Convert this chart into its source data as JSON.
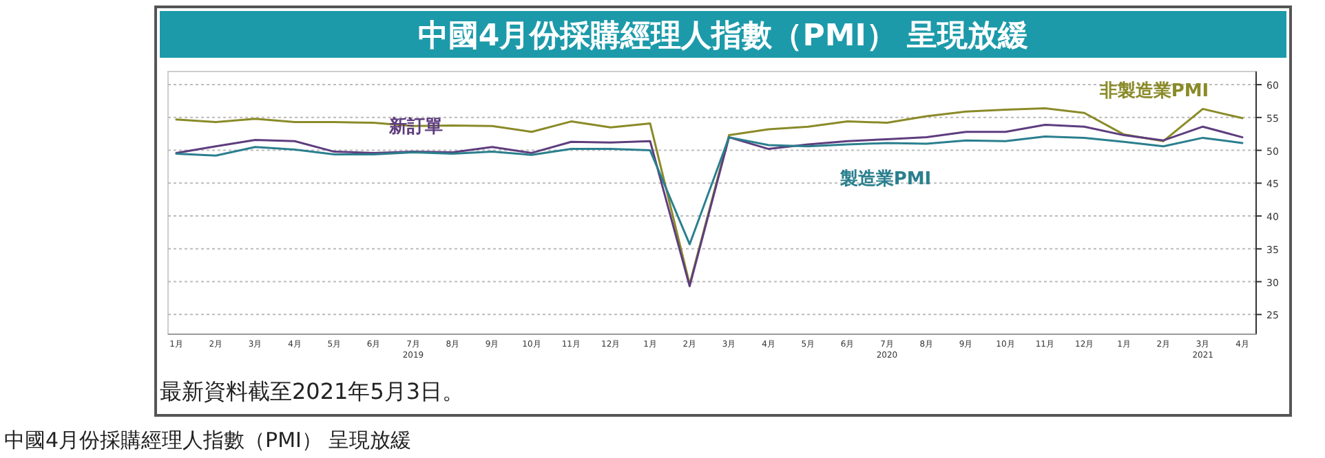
{
  "chart_data": {
    "type": "line",
    "title": "中國4月份採購經理人指數（PMI） 呈現放緩",
    "categories": [
      "1月",
      "2月",
      "3月",
      "4月",
      "5月",
      "6月",
      "7月\n2019",
      "8月",
      "9月",
      "10月",
      "11月",
      "12月",
      "1月",
      "2月",
      "3月",
      "4月",
      "5月",
      "6月",
      "7月\n2020",
      "8月",
      "9月",
      "10月",
      "11月",
      "12月",
      "1月",
      "2月",
      "3月\n2021",
      "4月"
    ],
    "series": [
      {
        "name": "非製造業PMI",
        "color": "#8a8a28",
        "values": [
          54.7,
          54.3,
          54.8,
          54.3,
          54.3,
          54.2,
          53.7,
          53.8,
          53.7,
          52.8,
          54.4,
          53.5,
          54.1,
          29.6,
          52.3,
          53.2,
          53.6,
          54.4,
          54.2,
          55.2,
          55.9,
          56.2,
          56.4,
          55.7,
          52.4,
          51.4,
          56.3,
          54.9
        ]
      },
      {
        "name": "新訂單",
        "color": "#5e3d7e",
        "values": [
          49.6,
          50.6,
          51.6,
          51.4,
          49.8,
          49.6,
          49.8,
          49.7,
          50.5,
          49.6,
          51.3,
          51.2,
          51.4,
          29.3,
          52.0,
          50.2,
          50.9,
          51.4,
          51.7,
          52.0,
          52.8,
          52.8,
          53.9,
          53.6,
          52.3,
          51.5,
          53.6,
          52.0
        ]
      },
      {
        "name": "製造業PMI",
        "color": "#2a7f8e",
        "values": [
          49.5,
          49.2,
          50.5,
          50.1,
          49.4,
          49.4,
          49.7,
          49.5,
          49.8,
          49.3,
          50.2,
          50.2,
          50.0,
          35.7,
          52.0,
          50.8,
          50.6,
          50.9,
          51.1,
          51.0,
          51.5,
          51.4,
          52.1,
          51.9,
          51.3,
          50.6,
          51.9,
          51.1
        ]
      }
    ],
    "ylim": [
      22,
      62
    ],
    "yticks": [
      60,
      55,
      50,
      45,
      40,
      35,
      30,
      25
    ],
    "grid": "y",
    "line_style": "solid",
    "marker": "none",
    "annotations": [
      "最新資料截至2021年5月3日。",
      "中國4月份採購經理人指數（PMI） 呈現放緩"
    ]
  }
}
